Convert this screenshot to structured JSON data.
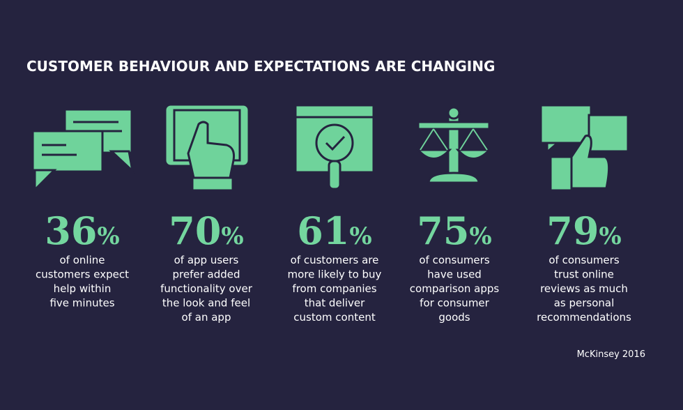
{
  "header": {
    "title": "CUSTOMER BEHAVIOUR AND EXPECTATIONS ARE CHANGING"
  },
  "stats": [
    {
      "value": 36,
      "unit": "%",
      "lines": [
        "of online",
        "customers expect",
        "help within",
        "five minutes"
      ]
    },
    {
      "value": 70,
      "unit": "%",
      "lines": [
        "of app users",
        "prefer added",
        "functionality over",
        "the look and feel",
        "of an app"
      ]
    },
    {
      "value": 61,
      "unit": "%",
      "lines": [
        "of customers are",
        "more likely to buy",
        "from companies",
        "that deliver",
        "custom content"
      ]
    },
    {
      "value": 75,
      "unit": "%",
      "lines": [
        "of consumers",
        "have used",
        "comparison apps",
        "for consumer",
        "goods"
      ]
    },
    {
      "value": 79,
      "unit": "%",
      "lines": [
        "of consumers",
        "trust online",
        "reviews as much",
        "as personal",
        "recommendations"
      ]
    }
  ],
  "source": "McKinsey 2016"
}
